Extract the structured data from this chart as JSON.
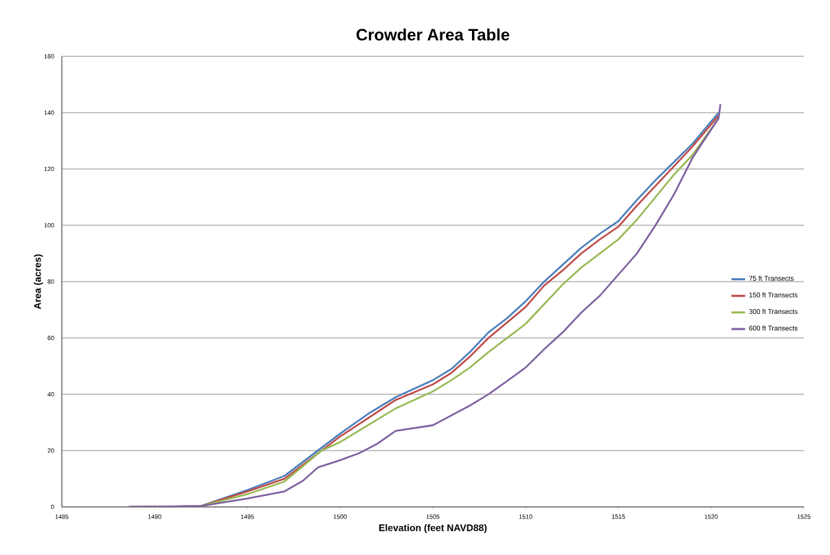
{
  "chart_data": {
    "type": "line",
    "title": "Crowder Area Table",
    "xlabel": "Elevation (feet NAVD88)",
    "ylabel": "Area (acres)",
    "xlim": [
      1485,
      1525
    ],
    "xticks": [
      1485,
      1490,
      1495,
      1500,
      1505,
      1510,
      1515,
      1520,
      1525
    ],
    "ylim": [
      0,
      160
    ],
    "yticks": [
      0,
      20,
      40,
      60,
      80,
      100,
      120,
      140,
      160
    ],
    "grid": "y",
    "legend": "right",
    "marker": "none",
    "line_style": "solid",
    "series": [
      {
        "name": "75 ft Transects",
        "color": "#4a7ebb",
        "x": [
          1488.6,
          1492.5,
          1495,
          1497,
          1499,
          1500,
          1501.5,
          1503,
          1505,
          1506,
          1507,
          1508,
          1509,
          1510,
          1511,
          1512,
          1513,
          1514,
          1515,
          1516,
          1517,
          1518,
          1519,
          1520.4
        ],
        "values": [
          0,
          0.3,
          6,
          11,
          21,
          26,
          33,
          39,
          45,
          49,
          55,
          62,
          67,
          73,
          80,
          86,
          92,
          97,
          101.5,
          109,
          116,
          122.5,
          129,
          140
        ]
      },
      {
        "name": "150 ft Transects",
        "color": "#be4b48",
        "x": [
          1488.6,
          1492.5,
          1495,
          1497,
          1499,
          1500,
          1501.5,
          1503,
          1505,
          1506,
          1507,
          1508,
          1509,
          1510,
          1511,
          1512,
          1513,
          1514,
          1515,
          1516,
          1517,
          1518,
          1519,
          1520.4
        ],
        "values": [
          0,
          0.3,
          5.5,
          10,
          20,
          25,
          31.5,
          38,
          43.5,
          47.6,
          53.4,
          60,
          65.5,
          71,
          78.6,
          84,
          90,
          95,
          99.5,
          107,
          114,
          121,
          128,
          139
        ]
      },
      {
        "name": "300 ft Transects",
        "color": "#98b954",
        "x": [
          1488.6,
          1492.5,
          1495,
          1497,
          1499,
          1500,
          1501.5,
          1503,
          1505,
          1506,
          1507,
          1508,
          1509,
          1510,
          1511,
          1512,
          1513,
          1514,
          1515,
          1516,
          1517,
          1518,
          1519,
          1520.4
        ],
        "values": [
          0,
          0.3,
          4.5,
          9,
          20,
          23,
          29,
          35,
          41,
          45,
          49.5,
          55,
          60,
          65,
          72,
          79,
          85,
          90,
          95,
          102,
          110,
          118,
          125,
          138
        ]
      },
      {
        "name": "600 ft Transects",
        "color": "#7d60a0",
        "x": [
          1488.6,
          1492.5,
          1495,
          1497,
          1498,
          1498.8,
          1500,
          1501,
          1502,
          1503,
          1505,
          1506,
          1507,
          1508,
          1509,
          1510,
          1511,
          1512,
          1513,
          1514,
          1515,
          1516,
          1517,
          1518,
          1519,
          1520.4,
          1520.5
        ],
        "values": [
          0,
          0.3,
          3,
          5.5,
          9.3,
          14,
          16.6,
          19,
          22.4,
          27,
          29,
          32.5,
          36,
          40,
          44.7,
          49.5,
          56,
          62,
          69,
          75,
          82.5,
          90,
          100,
          111,
          124,
          138,
          143
        ]
      }
    ]
  }
}
